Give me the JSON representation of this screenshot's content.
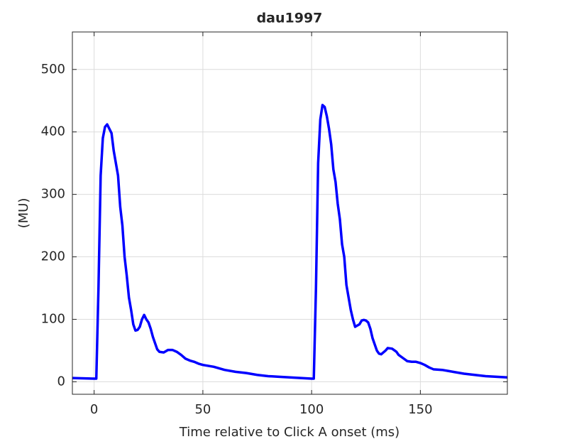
{
  "chart_data": {
    "type": "line",
    "title": "dau1997",
    "xlabel": "Time relative to Click A onset (ms)",
    "ylabel": "(MU)",
    "x": [
      -10,
      0,
      1,
      2,
      3,
      4,
      5,
      6,
      7,
      8,
      9,
      10,
      11,
      12,
      13,
      14,
      15,
      16,
      17,
      18,
      19,
      20,
      21,
      22,
      23,
      24,
      25,
      26,
      27,
      28,
      29,
      30,
      32,
      34,
      36,
      38,
      40,
      42,
      44,
      46,
      48,
      50,
      55,
      60,
      65,
      70,
      75,
      80,
      85,
      90,
      95,
      100,
      101,
      102,
      103,
      104,
      105,
      106,
      107,
      108,
      109,
      110,
      111,
      112,
      113,
      114,
      115,
      116,
      117,
      118,
      119,
      120,
      121,
      122,
      123,
      124,
      125,
      126,
      127,
      128,
      129,
      130,
      131,
      132,
      134,
      135,
      137,
      139,
      140,
      142,
      144,
      146,
      148,
      150,
      152,
      154,
      156,
      160,
      165,
      170,
      175,
      180,
      185,
      190
    ],
    "series": [
      {
        "name": "dau1997",
        "color": "#0000ff",
        "values": [
          6,
          5,
          5,
          150,
          330,
          390,
          408,
          412,
          405,
          398,
          370,
          350,
          330,
          280,
          250,
          200,
          170,
          135,
          115,
          92,
          82,
          83,
          88,
          100,
          107,
          100,
          95,
          85,
          72,
          62,
          52,
          48,
          47,
          51,
          51,
          48,
          43,
          37,
          34,
          32,
          29,
          27,
          24,
          19,
          16,
          14,
          11,
          9,
          8,
          7,
          6,
          5,
          5,
          150,
          350,
          420,
          443,
          440,
          425,
          405,
          380,
          340,
          320,
          285,
          260,
          220,
          200,
          155,
          135,
          115,
          100,
          88,
          90,
          92,
          98,
          99,
          98,
          95,
          85,
          70,
          60,
          50,
          45,
          44,
          50,
          54,
          53,
          48,
          43,
          38,
          33,
          32,
          32,
          30,
          27,
          23,
          20,
          19,
          16,
          13,
          11,
          9,
          8,
          7
        ]
      }
    ],
    "xlim": [
      -10,
      190
    ],
    "ylim": [
      -20,
      560
    ],
    "xticks": [
      0,
      50,
      100,
      150
    ],
    "yticks": [
      0,
      100,
      200,
      300,
      400,
      500
    ],
    "grid": true
  }
}
